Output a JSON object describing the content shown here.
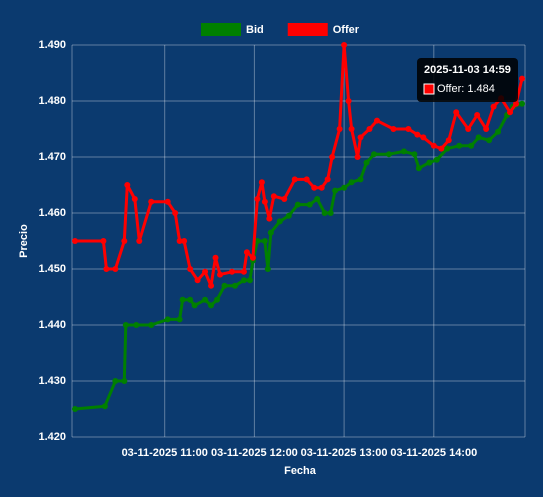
{
  "chart_data": {
    "type": "line",
    "x_label": "Fecha",
    "y_label": "Precio",
    "xlim": [
      "2025-11-03 09:58",
      "2025-11-03 15:01"
    ],
    "xticks": [
      {
        "value": "2025-11-03 11:00",
        "label": "03-11-2025 11:00"
      },
      {
        "value": "2025-11-03 12:00",
        "label": "03-11-2025 12:00"
      },
      {
        "value": "2025-11-03 13:00",
        "label": "03-11-2025 13:00"
      },
      {
        "value": "2025-11-03 14:00",
        "label": "03-11-2025 14:00"
      }
    ],
    "ylim": [
      1.42,
      1.49
    ],
    "yticks": [
      {
        "value": 1.42,
        "label": "1.420"
      },
      {
        "value": 1.43,
        "label": "1.430"
      },
      {
        "value": 1.44,
        "label": "1.440"
      },
      {
        "value": 1.45,
        "label": "1.450"
      },
      {
        "value": 1.46,
        "label": "1.460"
      },
      {
        "value": 1.47,
        "label": "1.470"
      },
      {
        "value": 1.48,
        "label": "1.480"
      },
      {
        "value": 1.49,
        "label": "1.490"
      }
    ],
    "grid": true,
    "legend": "top",
    "series": [
      {
        "name": "Bid",
        "color": "#008000",
        "x": [
          "2025-11-03 10:00",
          "2025-11-03 10:20",
          "2025-11-03 10:27",
          "2025-11-03 10:33",
          "2025-11-03 10:34",
          "2025-11-03 10:41",
          "2025-11-03 10:51",
          "2025-11-03 11:02",
          "2025-11-03 11:10",
          "2025-11-03 11:12",
          "2025-11-03 11:17",
          "2025-11-03 11:20",
          "2025-11-03 11:27",
          "2025-11-03 11:31",
          "2025-11-03 11:35",
          "2025-11-03 11:40",
          "2025-11-03 11:47",
          "2025-11-03 11:53",
          "2025-11-03 11:57",
          "2025-11-03 11:59",
          "2025-11-03 12:02",
          "2025-11-03 12:07",
          "2025-11-03 12:09",
          "2025-11-03 12:11",
          "2025-11-03 12:17",
          "2025-11-03 12:23",
          "2025-11-03 12:29",
          "2025-11-03 12:37",
          "2025-11-03 12:42",
          "2025-11-03 12:47",
          "2025-11-03 12:51",
          "2025-11-03 12:54",
          "2025-11-03 13:00",
          "2025-11-03 13:05",
          "2025-11-03 13:11",
          "2025-11-03 13:15",
          "2025-11-03 13:20",
          "2025-11-03 13:30",
          "2025-11-03 13:40",
          "2025-11-03 13:47",
          "2025-11-03 13:50",
          "2025-11-03 13:57",
          "2025-11-03 14:02",
          "2025-11-03 14:09",
          "2025-11-03 14:17",
          "2025-11-03 14:25",
          "2025-11-03 14:30",
          "2025-11-03 14:37",
          "2025-11-03 14:43",
          "2025-11-03 14:49",
          "2025-11-03 14:53",
          "2025-11-03 14:59"
        ],
        "values": [
          1.425,
          1.4255,
          1.43,
          1.43,
          1.44,
          1.44,
          1.44,
          1.441,
          1.441,
          1.4445,
          1.4445,
          1.4435,
          1.4445,
          1.4435,
          1.4445,
          1.447,
          1.447,
          1.448,
          1.448,
          1.4515,
          1.455,
          1.455,
          1.45,
          1.4565,
          1.4585,
          1.4595,
          1.4615,
          1.4615,
          1.4625,
          1.46,
          1.46,
          1.464,
          1.4645,
          1.4655,
          1.466,
          1.469,
          1.4705,
          1.4705,
          1.471,
          1.4705,
          1.468,
          1.469,
          1.4695,
          1.4715,
          1.472,
          1.472,
          1.4735,
          1.473,
          1.4745,
          1.4775,
          1.479,
          1.4795
        ]
      },
      {
        "name": "Offer",
        "color": "#ff0000",
        "x": [
          "2025-11-03 10:00",
          "2025-11-03 10:19",
          "2025-11-03 10:21",
          "2025-11-03 10:27",
          "2025-11-03 10:33",
          "2025-11-03 10:35",
          "2025-11-03 10:40",
          "2025-11-03 10:43",
          "2025-11-03 10:51",
          "2025-11-03 11:02",
          "2025-11-03 11:07",
          "2025-11-03 11:10",
          "2025-11-03 11:13",
          "2025-11-03 11:17",
          "2025-11-03 11:22",
          "2025-11-03 11:27",
          "2025-11-03 11:31",
          "2025-11-03 11:34",
          "2025-11-03 11:37",
          "2025-11-03 11:45",
          "2025-11-03 11:53",
          "2025-11-03 11:55",
          "2025-11-03 11:59",
          "2025-11-03 12:02",
          "2025-11-03 12:05",
          "2025-11-03 12:07",
          "2025-11-03 12:10",
          "2025-11-03 12:13",
          "2025-11-03 12:20",
          "2025-11-03 12:27",
          "2025-11-03 12:35",
          "2025-11-03 12:40",
          "2025-11-03 12:45",
          "2025-11-03 12:49",
          "2025-11-03 12:52",
          "2025-11-03 12:57",
          "2025-11-03 13:00",
          "2025-11-03 13:03",
          "2025-11-03 13:05",
          "2025-11-03 13:09",
          "2025-11-03 13:11",
          "2025-11-03 13:17",
          "2025-11-03 13:22",
          "2025-11-03 13:33",
          "2025-11-03 13:43",
          "2025-11-03 13:49",
          "2025-11-03 13:53",
          "2025-11-03 14:00",
          "2025-11-03 14:05",
          "2025-11-03 14:10",
          "2025-11-03 14:15",
          "2025-11-03 14:23",
          "2025-11-03 14:29",
          "2025-11-03 14:35",
          "2025-11-03 14:40",
          "2025-11-03 14:45",
          "2025-11-03 14:51",
          "2025-11-03 14:55",
          "2025-11-03 14:59"
        ],
        "values": [
          1.455,
          1.455,
          1.45,
          1.45,
          1.455,
          1.465,
          1.4625,
          1.455,
          1.462,
          1.462,
          1.46,
          1.455,
          1.455,
          1.45,
          1.448,
          1.4495,
          1.447,
          1.452,
          1.449,
          1.4495,
          1.4495,
          1.453,
          1.452,
          1.4625,
          1.4655,
          1.462,
          1.459,
          1.463,
          1.4625,
          1.466,
          1.466,
          1.4645,
          1.4645,
          1.466,
          1.47,
          1.475,
          1.49,
          1.48,
          1.475,
          1.47,
          1.4735,
          1.475,
          1.4765,
          1.475,
          1.475,
          1.474,
          1.4735,
          1.472,
          1.4715,
          1.473,
          1.478,
          1.475,
          1.4775,
          1.475,
          1.479,
          1.4805,
          1.478,
          1.4795,
          1.484
        ]
      }
    ],
    "tooltip": {
      "title": "2025-11-03 14:59",
      "label": "Offer: 1.484",
      "series": 1
    }
  }
}
